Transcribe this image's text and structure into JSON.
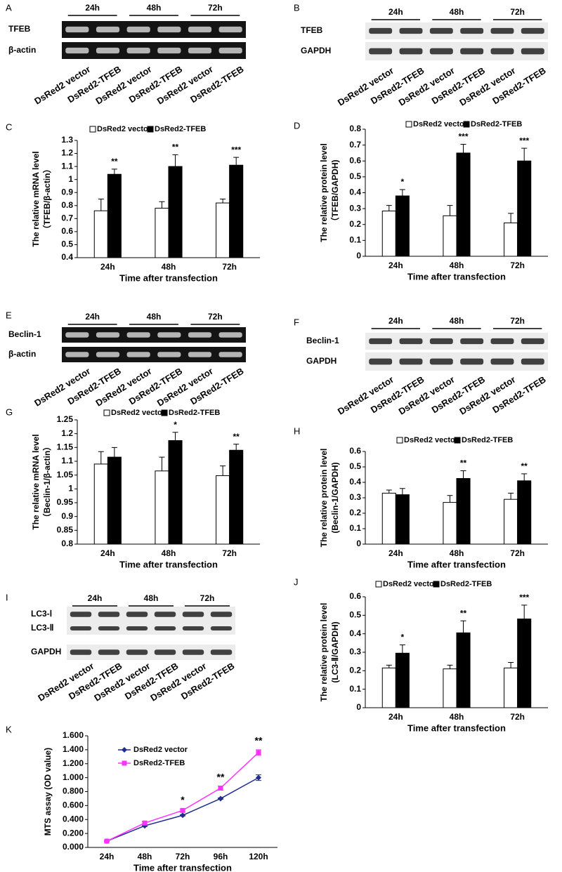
{
  "blots": [
    {
      "letter": "A",
      "groups": [
        "24h",
        "48h",
        "72h"
      ],
      "rows": [
        "TFEB",
        "β-actin"
      ],
      "lanes": [
        "DsRed2 vector",
        "DsRed2-TFEB",
        "DsRed2 vector",
        "DsRed2-TFEB",
        "DsRed2 vector",
        "DsRed2-TFEB"
      ]
    },
    {
      "letter": "B",
      "groups": [
        "24h",
        "48h",
        "72h"
      ],
      "rows": [
        "TFEB",
        "GAPDH"
      ],
      "lanes": [
        "DsRed2 vector",
        "DsRed2-TFEB",
        "DsRed2 vector",
        "DsRed2-TFEB",
        "DsRed2 vector",
        "DsRed2-TFEB"
      ]
    },
    {
      "letter": "E",
      "groups": [
        "24h",
        "48h",
        "72h"
      ],
      "rows": [
        "Beclin-1",
        "β-actin"
      ],
      "lanes": [
        "DsRed2 vector",
        "DsRed2-TFEB",
        "DsRed2 vector",
        "DsRed2-TFEB",
        "DsRed2 vector",
        "DsRed2-TFEB"
      ]
    },
    {
      "letter": "F",
      "groups": [
        "24h",
        "48h",
        "72h"
      ],
      "rows": [
        "Beclin-1",
        "GAPDH"
      ],
      "lanes": [
        "DsRed2 vector",
        "DsRed2-TFEB",
        "DsRed2 vector",
        "DsRed2-TFEB",
        "DsRed2 vector",
        "DsRed2-TFEB"
      ]
    },
    {
      "letter": "I",
      "groups": [
        "24h",
        "48h",
        "72h"
      ],
      "rows": [
        "LC3-Ⅰ",
        "LC3-Ⅱ",
        "GAPDH"
      ],
      "lanes": [
        "DsRed2 vector",
        "DsRed2-TFEB",
        "DsRed2 vector",
        "DsRed2-TFEB",
        "DsRed2 vector",
        "DsRed2-TFEB"
      ]
    }
  ],
  "chart_data": [
    {
      "type": "bar",
      "letter": "C",
      "ylabel": [
        "The relative mRNA level",
        "（TFEB/β-actin）"
      ],
      "xlabel": "Time after transfection",
      "categories": [
        "24h",
        "48h",
        "72h"
      ],
      "series": [
        {
          "name": "DsRed2 vector",
          "color": "#ffffff",
          "values": [
            0.76,
            0.78,
            0.82
          ],
          "errors": [
            0.09,
            0.05,
            0.03
          ]
        },
        {
          "name": "DsRed2-TFEB",
          "color": "#000000",
          "values": [
            1.04,
            1.1,
            1.11
          ],
          "errors": [
            0.04,
            0.09,
            0.06
          ]
        }
      ],
      "annotations": [
        "**",
        "**",
        "***"
      ],
      "ylim": [
        0.4,
        1.3
      ],
      "yticks": [
        0.4,
        0.5,
        0.6,
        0.7,
        0.8,
        0.9,
        1,
        1.1,
        1.2,
        1.3
      ]
    },
    {
      "type": "bar",
      "letter": "D",
      "ylabel": [
        "The relative protein level",
        "（TFEB/GAPDH)"
      ],
      "xlabel": "Time after transfection",
      "categories": [
        "24h",
        "48h",
        "72h"
      ],
      "series": [
        {
          "name": "DsRed2 vector",
          "color": "#ffffff",
          "values": [
            0.285,
            0.255,
            0.21
          ],
          "errors": [
            0.035,
            0.065,
            0.06
          ]
        },
        {
          "name": "DsRed2-TFEB",
          "color": "#000000",
          "values": [
            0.38,
            0.65,
            0.6
          ],
          "errors": [
            0.04,
            0.055,
            0.08
          ]
        }
      ],
      "annotations": [
        "*",
        "***",
        "***"
      ],
      "ylim": [
        0,
        0.8
      ],
      "yticks": [
        0,
        0.1,
        0.2,
        0.3,
        0.4,
        0.5,
        0.6,
        0.7,
        0.8
      ]
    },
    {
      "type": "bar",
      "letter": "G",
      "ylabel": [
        "The relative mRNA level",
        "（Beclin-1/β-actin）"
      ],
      "xlabel": "Time after transfection",
      "categories": [
        "24h",
        "48h",
        "72h"
      ],
      "series": [
        {
          "name": "DsRed2 vector",
          "color": "#ffffff",
          "values": [
            1.09,
            1.065,
            1.048
          ],
          "errors": [
            0.045,
            0.05,
            0.035
          ]
        },
        {
          "name": "DsRed2-TFEB",
          "color": "#000000",
          "values": [
            1.115,
            1.175,
            1.14
          ],
          "errors": [
            0.035,
            0.03,
            0.022
          ]
        }
      ],
      "annotations": [
        null,
        "*",
        "**"
      ],
      "ylim": [
        0.8,
        1.25
      ],
      "yticks": [
        0.8,
        0.85,
        0.9,
        0.95,
        1,
        1.05,
        1.1,
        1.15,
        1.2,
        1.25
      ]
    },
    {
      "type": "bar",
      "letter": "H",
      "ylabel": [
        "The relative protein level",
        "(Beclin-1/GAPDH)"
      ],
      "xlabel": "Time after transfection",
      "categories": [
        "24h",
        "48h",
        "72h"
      ],
      "series": [
        {
          "name": "DsRed2 vector",
          "color": "#ffffff",
          "values": [
            0.33,
            0.27,
            0.29
          ],
          "errors": [
            0.02,
            0.045,
            0.04
          ]
        },
        {
          "name": "DsRed2-TFEB",
          "color": "#000000",
          "values": [
            0.32,
            0.425,
            0.41
          ],
          "errors": [
            0.04,
            0.05,
            0.045
          ]
        }
      ],
      "annotations": [
        null,
        "**",
        "**"
      ],
      "ylim": [
        0,
        0.6
      ],
      "yticks": [
        0,
        0.1,
        0.2,
        0.3,
        0.4,
        0.5,
        0.6
      ]
    },
    {
      "type": "bar",
      "letter": "J",
      "ylabel": [
        "The relative protein level",
        "(LC3-Ⅱ/GAPDH)"
      ],
      "xlabel": "Time after transfection",
      "categories": [
        "24h",
        "48h",
        "72h"
      ],
      "series": [
        {
          "name": "DsRed2 vector",
          "color": "#ffffff",
          "values": [
            0.215,
            0.21,
            0.215
          ],
          "errors": [
            0.015,
            0.02,
            0.03
          ]
        },
        {
          "name": "DsRed2-TFEB",
          "color": "#000000",
          "values": [
            0.295,
            0.405,
            0.48
          ],
          "errors": [
            0.045,
            0.065,
            0.075
          ]
        }
      ],
      "annotations": [
        "*",
        "**",
        "***"
      ],
      "ylim": [
        0,
        0.6
      ],
      "yticks": [
        0,
        0.1,
        0.2,
        0.3,
        0.4,
        0.5,
        0.6
      ]
    },
    {
      "type": "line",
      "letter": "K",
      "ylabel": [
        "MTS assay (OD value)"
      ],
      "xlabel": "Time after transfection",
      "categories": [
        "24h",
        "48h",
        "72h",
        "96h",
        "120h"
      ],
      "series": [
        {
          "name": "DsRed2 vector",
          "color": "#1f2d8f",
          "marker": "diamond",
          "values": [
            0.09,
            0.31,
            0.46,
            0.7,
            1.0
          ],
          "errors": [
            0.01,
            0.01,
            0.01,
            0.01,
            0.04
          ]
        },
        {
          "name": "DsRed2-TFEB",
          "color": "#ff33ff",
          "marker": "square",
          "values": [
            0.09,
            0.35,
            0.53,
            0.85,
            1.36
          ],
          "errors": [
            0.01,
            0.02,
            0.02,
            0.03,
            0.04
          ]
        }
      ],
      "annotations": [
        null,
        null,
        "*",
        "**",
        "**"
      ],
      "ylim": [
        0,
        1.6
      ],
      "yticks": [
        {
          "value": 0,
          "label": "0.000"
        },
        {
          "value": 0.2,
          "label": "0.200"
        },
        {
          "value": 0.4,
          "label": "0.400"
        },
        {
          "value": 0.6,
          "label": "0.600"
        },
        {
          "value": 0.8,
          "label": "0.800"
        },
        {
          "value": 1.0,
          "label": "1.000"
        },
        {
          "value": 1.2,
          "label": "1.200"
        },
        {
          "value": 1.4,
          "label": "1.400"
        },
        {
          "value": 1.6,
          "label": "1.600"
        }
      ]
    }
  ]
}
